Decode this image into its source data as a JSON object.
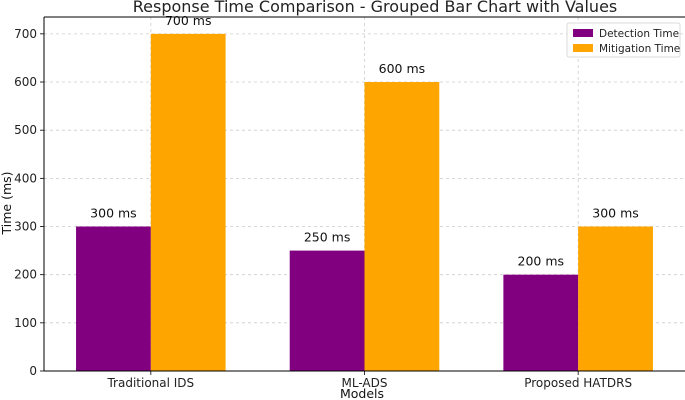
{
  "chart_data": {
    "type": "bar",
    "title": "Response Time Comparison - Grouped Bar Chart with Values",
    "xlabel": "Models",
    "ylabel": "Time (ms)",
    "categories": [
      "Traditional IDS",
      "ML-ADS",
      "Proposed HATDRS"
    ],
    "series": [
      {
        "name": "Detection Time",
        "values": [
          300,
          250,
          200
        ],
        "color": "#800080",
        "value_labels": [
          "300 ms",
          "250 ms",
          "200 ms"
        ]
      },
      {
        "name": "Mitigation Time",
        "values": [
          700,
          600,
          300
        ],
        "color": "#FFA500",
        "value_labels": [
          "700 ms",
          "600 ms",
          "300 ms"
        ]
      }
    ],
    "ylim": [
      0,
      735
    ],
    "yticks": [
      0,
      100,
      200,
      300,
      400,
      500,
      600,
      700
    ],
    "grid": true,
    "legend_position": "top-right"
  }
}
